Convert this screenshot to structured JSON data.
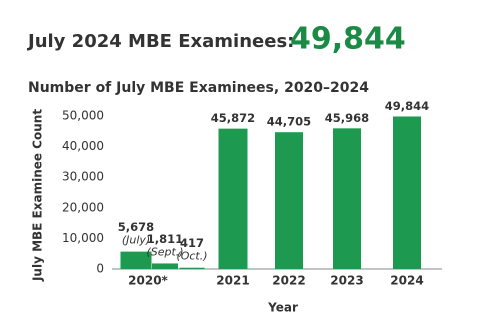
{
  "chart_data": {
    "type": "bar",
    "headline": "July 2024 MBE Examinees:",
    "headline_value": "49,844",
    "title": "Number of July MBE Examinees, 2020–2024",
    "x_label": "Year",
    "y_label": "July MBE Examinee Count",
    "color": "#1e9a50",
    "ylim": [
      0,
      50000
    ],
    "yticks": [
      {
        "value": 0,
        "label": "0"
      },
      {
        "value": 10000,
        "label": "10,000"
      },
      {
        "value": 20000,
        "label": "20,000"
      },
      {
        "value": 30000,
        "label": "30,000"
      },
      {
        "value": 40000,
        "label": "40,000"
      },
      {
        "value": 50000,
        "label": "50,000"
      }
    ],
    "groups": [
      {
        "label": "2020*",
        "values": [
          5678,
          1811,
          417
        ],
        "value_labels": [
          "5,678",
          "1,811",
          "417"
        ],
        "notes": [
          "(July)",
          "(Sept.)",
          "(Oct.)"
        ]
      },
      {
        "label": "2021",
        "values": [
          45872
        ],
        "value_labels": [
          "45,872"
        ]
      },
      {
        "label": "2022",
        "values": [
          44705
        ],
        "value_labels": [
          "44,705"
        ]
      },
      {
        "label": "2023",
        "values": [
          45968
        ],
        "value_labels": [
          "45,968"
        ]
      },
      {
        "label": "2024",
        "values": [
          49844
        ],
        "value_labels": [
          "49,844"
        ]
      }
    ]
  }
}
